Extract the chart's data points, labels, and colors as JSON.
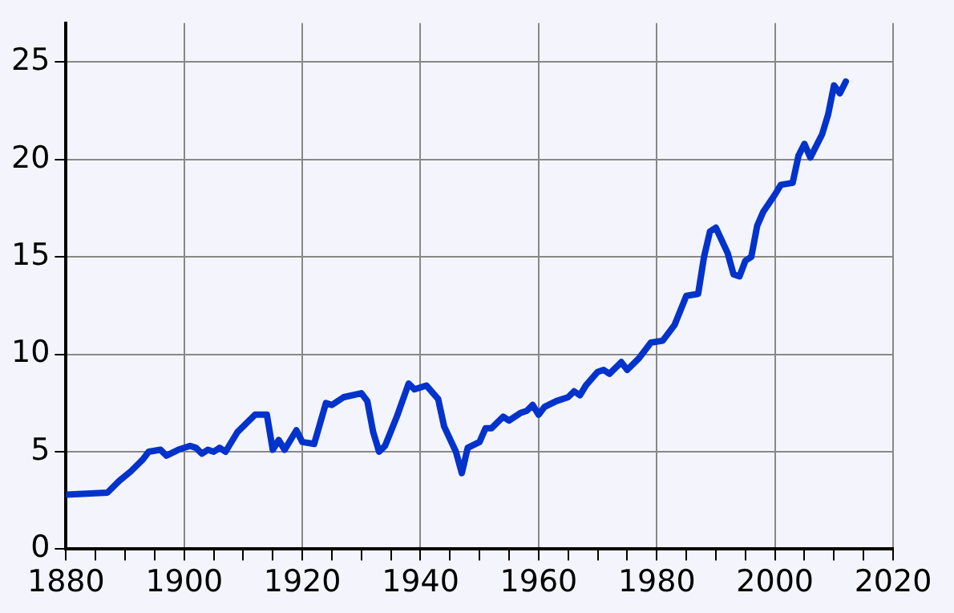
{
  "chart_data": {
    "type": "line",
    "x": [
      1880,
      1887,
      1889,
      1891,
      1893,
      1894,
      1896,
      1897,
      1899,
      1901,
      1902,
      1903,
      1904,
      1905,
      1906,
      1907,
      1909,
      1911,
      1912,
      1914,
      1915,
      1916,
      1917,
      1919,
      1920,
      1922,
      1924,
      1925,
      1927,
      1930,
      1931,
      1932,
      1933,
      1934,
      1936,
      1938,
      1939,
      1941,
      1943,
      1944,
      1946,
      1947,
      1948,
      1950,
      1951,
      1952,
      1954,
      1955,
      1957,
      1958,
      1959,
      1960,
      1961,
      1963,
      1965,
      1966,
      1967,
      1968,
      1970,
      1971,
      1972,
      1974,
      1975,
      1977,
      1979,
      1981,
      1983,
      1985,
      1987,
      1988,
      1989,
      1990,
      1992,
      1993,
      1994,
      1995,
      1996,
      1997,
      1998,
      2000,
      2001,
      2003,
      2004,
      2005,
      2006,
      2008,
      2009,
      2010,
      2011,
      2012
    ],
    "series": [
      {
        "color": "#0033cc",
        "values": [
          2.8,
          2.9,
          3.5,
          4.0,
          4.6,
          5.0,
          5.1,
          4.8,
          5.1,
          5.3,
          5.2,
          4.9,
          5.1,
          5.0,
          5.2,
          5.0,
          6.0,
          6.6,
          6.9,
          6.9,
          5.1,
          5.6,
          5.1,
          6.1,
          5.5,
          5.4,
          7.5,
          7.4,
          7.8,
          8.0,
          7.6,
          6.0,
          5.0,
          5.3,
          6.8,
          8.5,
          8.2,
          8.4,
          7.7,
          6.3,
          5.0,
          3.9,
          5.2,
          5.5,
          6.2,
          6.2,
          6.8,
          6.6,
          7.0,
          7.1,
          7.4,
          6.9,
          7.3,
          7.6,
          7.8,
          8.1,
          7.9,
          8.4,
          9.1,
          9.2,
          9.0,
          9.6,
          9.2,
          9.8,
          10.6,
          10.7,
          11.5,
          13.0,
          13.1,
          15.0,
          16.3,
          16.5,
          15.2,
          14.1,
          14.0,
          14.8,
          15.0,
          16.6,
          17.3,
          18.2,
          18.7,
          18.8,
          20.2,
          20.8,
          20.1,
          21.3,
          22.3,
          23.8,
          23.4,
          24.0
        ]
      }
    ],
    "xlim": [
      1880,
      2020
    ],
    "xticks": [
      1880,
      {
        "value": 1885,
        "label": null
      },
      {
        "value": 1890,
        "label": null
      },
      {
        "value": 1895,
        "label": null
      },
      1900,
      {
        "value": 1905,
        "label": null
      },
      {
        "value": 1910,
        "label": null
      },
      {
        "value": 1915,
        "label": null
      },
      1920,
      {
        "value": 1925,
        "label": null
      },
      {
        "value": 1930,
        "label": null
      },
      {
        "value": 1935,
        "label": null
      },
      1940,
      {
        "value": 1945,
        "label": null
      },
      {
        "value": 1950,
        "label": null
      },
      {
        "value": 1955,
        "label": null
      },
      1960,
      {
        "value": 1965,
        "label": null
      },
      {
        "value": 1970,
        "label": null
      },
      {
        "value": 1975,
        "label": null
      },
      1980,
      {
        "value": 1985,
        "label": null
      },
      {
        "value": 1990,
        "label": null
      },
      {
        "value": 1995,
        "label": null
      },
      2000,
      {
        "value": 2005,
        "label": null
      },
      {
        "value": 2010,
        "label": null
      },
      {
        "value": 2015,
        "label": null
      },
      2020
    ],
    "ylim": [
      0,
      27
    ],
    "yticks": [
      0,
      5,
      10,
      15,
      20,
      25
    ],
    "grid": true,
    "legend": false,
    "marker": "none",
    "line_style": "solid"
  }
}
